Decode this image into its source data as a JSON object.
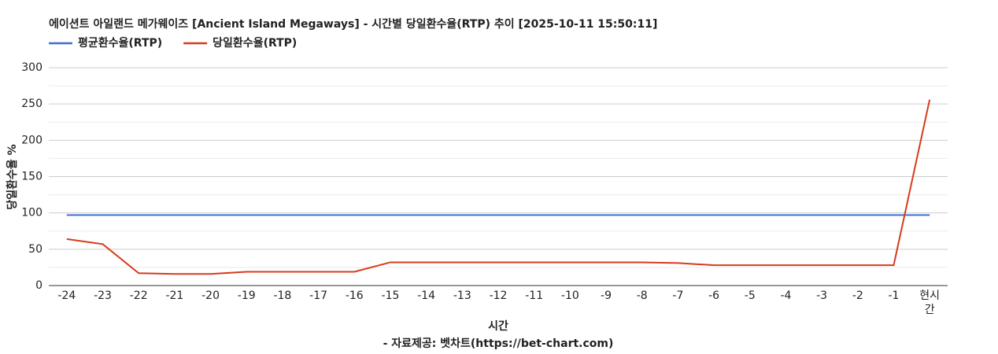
{
  "chart_data": {
    "type": "line",
    "title": "에이션트 아일랜드 메가웨이즈 [Ancient Island Megaways] - 시간별 당일환수율(RTP) 추이 [2025-10-11 15:50:11]",
    "y_label": "당일환수율 %",
    "x_label": "시간",
    "source": "- 자료제공: 벳차트(https://bet-chart.com)",
    "categories": [
      "-24",
      "-23",
      "-22",
      "-21",
      "-20",
      "-19",
      "-18",
      "-17",
      "-16",
      "-15",
      "-14",
      "-13",
      "-12",
      "-11",
      "-10",
      "-9",
      "-8",
      "-7",
      "-6",
      "-5",
      "-4",
      "-3",
      "-2",
      "-1",
      "현시간"
    ],
    "series": [
      {
        "name": "평균환수율(RTP)",
        "color": "#3d6fcf",
        "values": [
          97,
          97,
          97,
          97,
          97,
          97,
          97,
          97,
          97,
          97,
          97,
          97,
          97,
          97,
          97,
          97,
          97,
          97,
          97,
          97,
          97,
          97,
          97,
          97,
          97
        ]
      },
      {
        "name": "당일환수율(RTP)",
        "color": "#d63b1e",
        "values": [
          64,
          57,
          17,
          16,
          16,
          19,
          19,
          19,
          19,
          32,
          32,
          32,
          32,
          32,
          32,
          32,
          32,
          31,
          28,
          28,
          28,
          28,
          28,
          28,
          256
        ]
      }
    ],
    "ylim": [
      0,
      300
    ],
    "yticks": [
      0,
      50,
      100,
      150,
      200,
      250,
      300
    ],
    "minor_yticks": [
      25,
      75,
      125,
      175,
      225,
      275
    ],
    "grid": true,
    "legend": "top-left"
  }
}
